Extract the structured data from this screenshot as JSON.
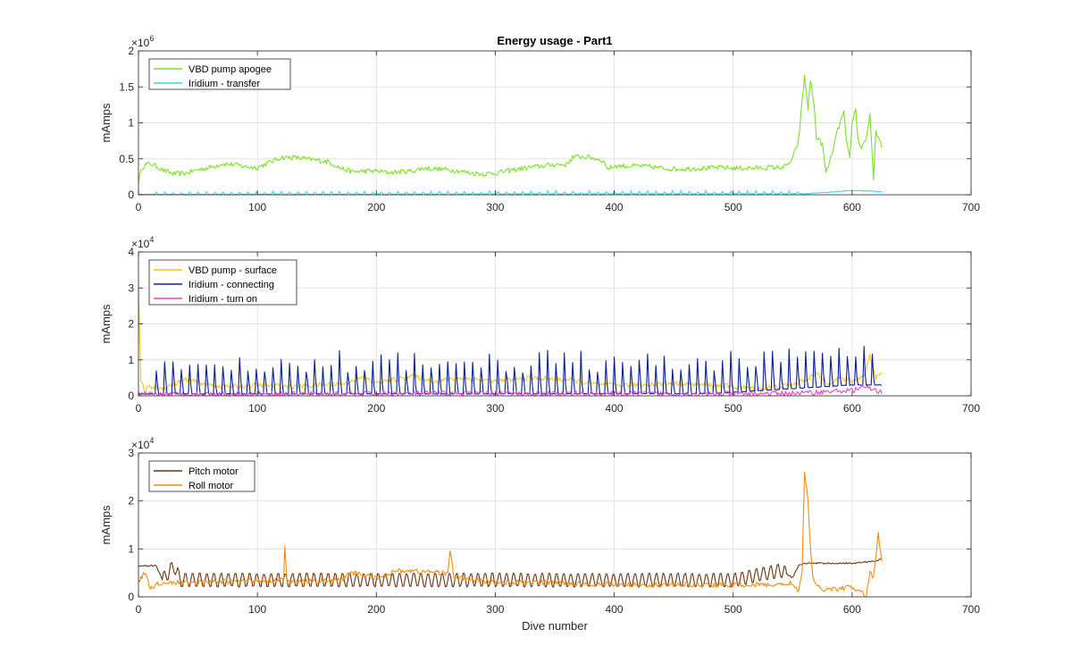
{
  "figure_title": "Energy usage - Part1",
  "x_label": "Dive number",
  "y_label": "mAmps",
  "chart_data": [
    {
      "type": "line",
      "title": "Energy usage - Part1",
      "xlabel": "",
      "ylabel": "mAmps",
      "xlim": [
        0,
        700
      ],
      "ylim": [
        0,
        2000000
      ],
      "x_ticks": [
        "0",
        "100",
        "200",
        "300",
        "400",
        "500",
        "600",
        "700"
      ],
      "y_ticks": [
        "0",
        "0.5",
        "1",
        "1.5",
        "2"
      ],
      "exponent_base": "×10",
      "exponent_power": "6",
      "grid": true,
      "legend_position": "top-left",
      "series": [
        {
          "name": "VBD pump apogee",
          "color": "#7ce02a",
          "style": "noisy",
          "points": [
            [
              0,
              180000
            ],
            [
              3,
              380000
            ],
            [
              6,
              420000
            ],
            [
              10,
              430000
            ],
            [
              15,
              400000
            ],
            [
              22,
              330000
            ],
            [
              30,
              290000
            ],
            [
              40,
              300000
            ],
            [
              50,
              350000
            ],
            [
              60,
              380000
            ],
            [
              70,
              430000
            ],
            [
              80,
              420000
            ],
            [
              90,
              390000
            ],
            [
              100,
              380000
            ],
            [
              110,
              450000
            ],
            [
              120,
              520000
            ],
            [
              130,
              520000
            ],
            [
              140,
              500000
            ],
            [
              150,
              480000
            ],
            [
              160,
              460000
            ],
            [
              170,
              370000
            ],
            [
              180,
              320000
            ],
            [
              190,
              330000
            ],
            [
              200,
              330000
            ],
            [
              210,
              310000
            ],
            [
              220,
              320000
            ],
            [
              230,
              330000
            ],
            [
              240,
              370000
            ],
            [
              250,
              360000
            ],
            [
              260,
              350000
            ],
            [
              270,
              330000
            ],
            [
              280,
              300000
            ],
            [
              290,
              290000
            ],
            [
              300,
              300000
            ],
            [
              310,
              330000
            ],
            [
              320,
              360000
            ],
            [
              330,
              380000
            ],
            [
              340,
              400000
            ],
            [
              350,
              420000
            ],
            [
              360,
              420000
            ],
            [
              365,
              520000
            ],
            [
              370,
              530000
            ],
            [
              380,
              520000
            ],
            [
              385,
              500000
            ],
            [
              390,
              480000
            ],
            [
              395,
              360000
            ],
            [
              400,
              400000
            ],
            [
              410,
              400000
            ],
            [
              420,
              400000
            ],
            [
              430,
              390000
            ],
            [
              440,
              370000
            ],
            [
              450,
              360000
            ],
            [
              460,
              360000
            ],
            [
              470,
              370000
            ],
            [
              480,
              370000
            ],
            [
              490,
              380000
            ],
            [
              500,
              370000
            ],
            [
              510,
              370000
            ],
            [
              520,
              370000
            ],
            [
              530,
              380000
            ],
            [
              540,
              380000
            ],
            [
              545,
              400000
            ],
            [
              550,
              500000
            ],
            [
              555,
              750000
            ],
            [
              558,
              1300000
            ],
            [
              560,
              1650000
            ],
            [
              563,
              1200000
            ],
            [
              565,
              1600000
            ],
            [
              568,
              1250000
            ],
            [
              570,
              800000
            ],
            [
              575,
              700000
            ],
            [
              578,
              300000
            ],
            [
              582,
              500000
            ],
            [
              585,
              700000
            ],
            [
              588,
              900000
            ],
            [
              590,
              1000000
            ],
            [
              593,
              1150000
            ],
            [
              595,
              750000
            ],
            [
              598,
              500000
            ],
            [
              600,
              1000000
            ],
            [
              603,
              1200000
            ],
            [
              605,
              750000
            ],
            [
              608,
              650000
            ],
            [
              612,
              800000
            ],
            [
              615,
              1100000
            ],
            [
              618,
              200000
            ],
            [
              620,
              900000
            ],
            [
              622,
              800000
            ],
            [
              625,
              650000
            ]
          ]
        },
        {
          "name": "Iridium - transfer",
          "color": "#33d9e8",
          "style": "spiky",
          "points": [
            [
              0,
              5000
            ],
            [
              560,
              15000
            ],
            [
              580,
              35000
            ],
            [
              600,
              60000
            ],
            [
              620,
              50000
            ],
            [
              625,
              40000
            ]
          ],
          "spikes": {
            "from": 15,
            "to": 555,
            "step": 7,
            "height": 40000
          }
        }
      ]
    },
    {
      "type": "line",
      "title": "",
      "xlabel": "",
      "ylabel": "mAmps",
      "xlim": [
        0,
        700
      ],
      "ylim": [
        0,
        40000
      ],
      "x_ticks": [
        "0",
        "100",
        "200",
        "300",
        "400",
        "500",
        "600",
        "700"
      ],
      "y_ticks": [
        "0",
        "1",
        "2",
        "3",
        "4"
      ],
      "exponent_base": "×10",
      "exponent_power": "4",
      "grid": true,
      "legend_position": "top-left",
      "series": [
        {
          "name": "VBD pump - surface",
          "color": "#f2c618",
          "style": "noisy",
          "points": [
            [
              0,
              31000
            ],
            [
              2,
              4000
            ],
            [
              5,
              1500
            ],
            [
              10,
              2500
            ],
            [
              20,
              2000
            ],
            [
              40,
              4500
            ],
            [
              60,
              3000
            ],
            [
              80,
              2500
            ],
            [
              100,
              3000
            ],
            [
              130,
              2500
            ],
            [
              150,
              3000
            ],
            [
              175,
              3500
            ],
            [
              180,
              4500
            ],
            [
              190,
              5000
            ],
            [
              200,
              3500
            ],
            [
              230,
              5500
            ],
            [
              250,
              4000
            ],
            [
              270,
              5000
            ],
            [
              300,
              4000
            ],
            [
              330,
              5000
            ],
            [
              360,
              4500
            ],
            [
              390,
              3000
            ],
            [
              420,
              3000
            ],
            [
              450,
              3500
            ],
            [
              480,
              3000
            ],
            [
              500,
              2500
            ],
            [
              520,
              2000
            ],
            [
              550,
              3000
            ],
            [
              570,
              6000
            ],
            [
              580,
              3500
            ],
            [
              590,
              5000
            ],
            [
              600,
              4000
            ],
            [
              610,
              5500
            ],
            [
              615,
              11000
            ],
            [
              620,
              5000
            ],
            [
              625,
              7000
            ]
          ]
        },
        {
          "name": "Iridium - connecting",
          "color": "#0a1f9c",
          "style": "spiky",
          "points": [
            [
              0,
              500
            ],
            [
              480,
              600
            ],
            [
              500,
              1000
            ],
            [
              550,
              2000
            ],
            [
              600,
              3000
            ],
            [
              625,
              3000
            ]
          ],
          "spikes": {
            "from": 15,
            "to": 620,
            "step": 7,
            "height": 10500
          }
        },
        {
          "name": "Iridium - turn on",
          "color": "#e04cc1",
          "style": "noisy",
          "points": [
            [
              0,
              400
            ],
            [
              100,
              500
            ],
            [
              200,
              600
            ],
            [
              300,
              700
            ],
            [
              400,
              600
            ],
            [
              500,
              500
            ],
            [
              560,
              800
            ],
            [
              580,
              1200
            ],
            [
              600,
              1500
            ],
            [
              610,
              2500
            ],
            [
              625,
              900
            ]
          ]
        }
      ]
    },
    {
      "type": "line",
      "title": "",
      "xlabel": "Dive number",
      "ylabel": "mAmps",
      "xlim": [
        0,
        700
      ],
      "ylim": [
        0,
        30000
      ],
      "x_ticks": [
        "0",
        "100",
        "200",
        "300",
        "400",
        "500",
        "600",
        "700"
      ],
      "y_ticks": [
        "0",
        "1",
        "2",
        "3"
      ],
      "exponent_base": "×10",
      "exponent_power": "4",
      "grid": true,
      "legend_position": "top-left",
      "series": [
        {
          "name": "Pitch motor",
          "color": "#6b3510",
          "style": "oscillating",
          "points": [
            [
              0,
              6500
            ],
            [
              15,
              6500
            ],
            [
              20,
              3500
            ],
            [
              30,
              6500
            ],
            [
              35,
              3500
            ],
            [
              100,
              3500
            ],
            [
              200,
              3500
            ],
            [
              300,
              3500
            ],
            [
              400,
              3500
            ],
            [
              500,
              3500
            ],
            [
              540,
              5500
            ],
            [
              550,
              4000
            ],
            [
              555,
              6500
            ],
            [
              560,
              7000
            ],
            [
              580,
              7000
            ],
            [
              600,
              7000
            ],
            [
              620,
              7500
            ],
            [
              625,
              8000
            ]
          ],
          "oscillation": {
            "from": 20,
            "to": 545,
            "step": 6,
            "amplitude": 1500
          }
        },
        {
          "name": "Roll motor",
          "color": "#f28c0f",
          "style": "noisy",
          "points": [
            [
              0,
              3000
            ],
            [
              5,
              5000
            ],
            [
              10,
              2000
            ],
            [
              20,
              3000
            ],
            [
              50,
              3000
            ],
            [
              100,
              3500
            ],
            [
              122,
              3500
            ],
            [
              123,
              10500
            ],
            [
              125,
              3000
            ],
            [
              170,
              3500
            ],
            [
              180,
              5000
            ],
            [
              200,
              4000
            ],
            [
              220,
              5500
            ],
            [
              260,
              5000
            ],
            [
              262,
              10000
            ],
            [
              265,
              4000
            ],
            [
              300,
              3000
            ],
            [
              350,
              3000
            ],
            [
              400,
              2500
            ],
            [
              450,
              2500
            ],
            [
              500,
              2500
            ],
            [
              540,
              2500
            ],
            [
              550,
              3000
            ],
            [
              555,
              1000
            ],
            [
              558,
              5000
            ],
            [
              560,
              26000
            ],
            [
              563,
              20000
            ],
            [
              565,
              10000
            ],
            [
              567,
              4000
            ],
            [
              570,
              2000
            ],
            [
              580,
              1500
            ],
            [
              600,
              2000
            ],
            [
              612,
              200
            ],
            [
              615,
              5000
            ],
            [
              618,
              4000
            ],
            [
              622,
              13000
            ],
            [
              625,
              7500
            ]
          ]
        }
      ]
    }
  ]
}
